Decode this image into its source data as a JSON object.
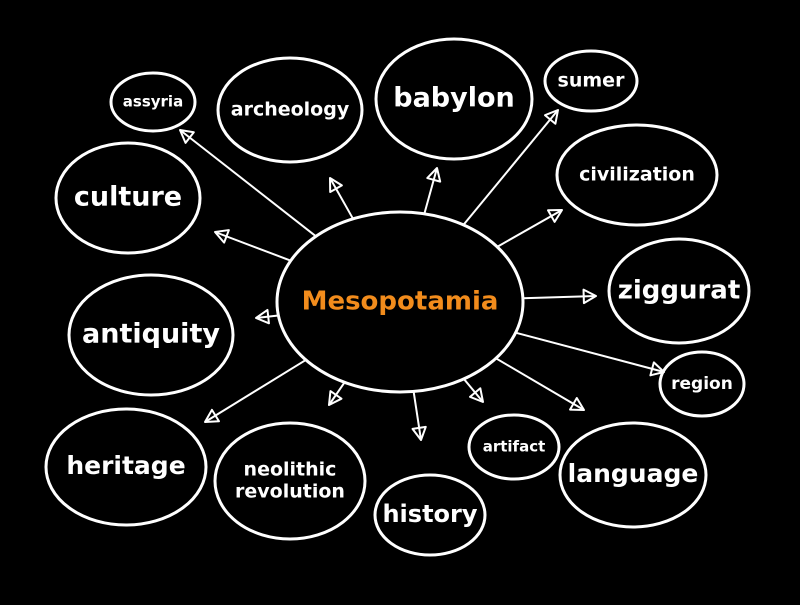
{
  "center": {
    "label": "Mesopotamia",
    "color": "#f28c1c"
  },
  "nodes": [
    {
      "id": "assyria",
      "label": "assyria"
    },
    {
      "id": "archeology",
      "label": "archeology"
    },
    {
      "id": "babylon",
      "label": "babylon"
    },
    {
      "id": "sumer",
      "label": "sumer"
    },
    {
      "id": "civilization",
      "label": "civilization"
    },
    {
      "id": "culture",
      "label": "culture"
    },
    {
      "id": "ziggurat",
      "label": "ziggurat"
    },
    {
      "id": "antiquity",
      "label": "antiquity"
    },
    {
      "id": "region",
      "label": "region"
    },
    {
      "id": "heritage",
      "label": "heritage"
    },
    {
      "id": "neolithic-revolution",
      "label": "neolithic revolution"
    },
    {
      "id": "history",
      "label": "history"
    },
    {
      "id": "artifact",
      "label": "artifact"
    },
    {
      "id": "language",
      "label": "language"
    }
  ]
}
